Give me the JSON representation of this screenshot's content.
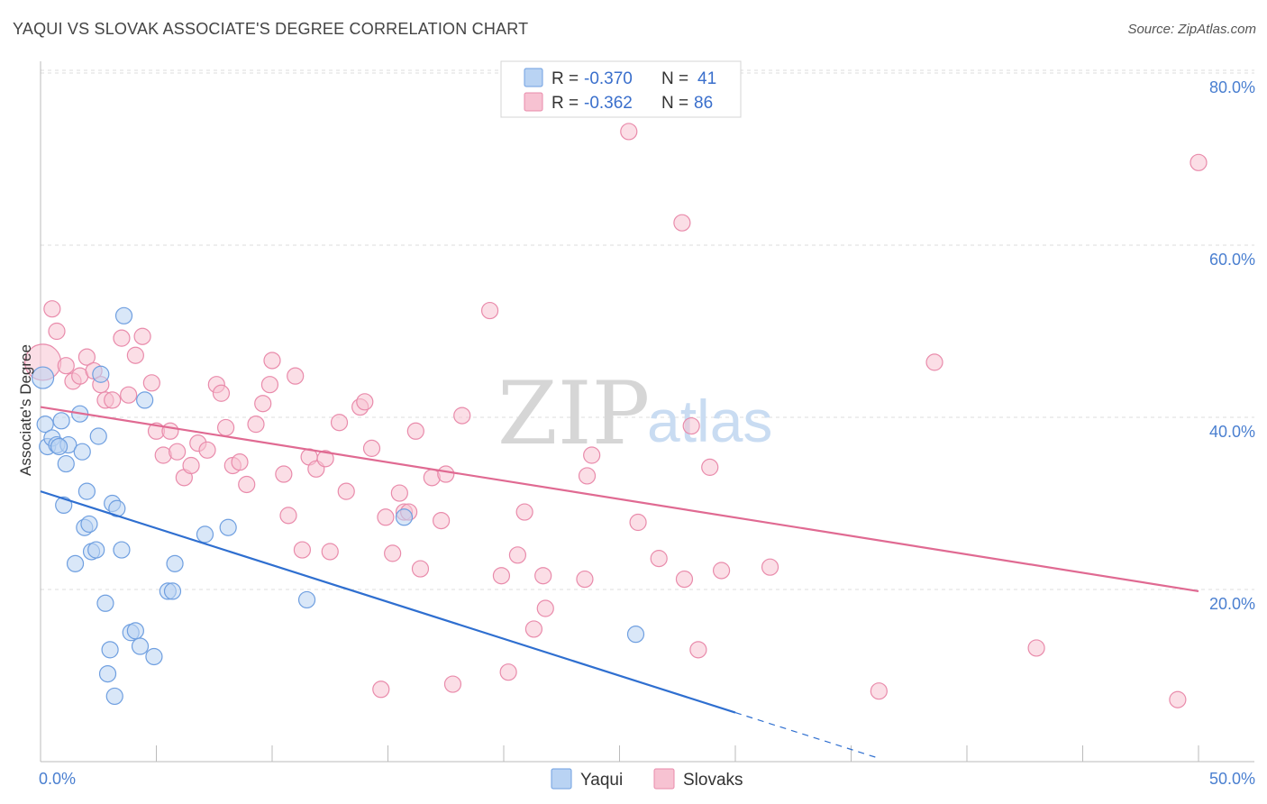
{
  "header": {
    "title": "YAQUI VS SLOVAK ASSOCIATE'S DEGREE CORRELATION CHART",
    "source": "Source: ZipAtlas.com"
  },
  "watermark": {
    "zip": "ZIP",
    "atlas": "atlas"
  },
  "legend": {
    "yaqui": {
      "r_label": "R =",
      "r_value": "-0.370",
      "n_label": "N =",
      "n_value": "41"
    },
    "slovaks": {
      "r_label": "R =",
      "r_value": "-0.362",
      "n_label": "N =",
      "n_value": "86"
    }
  },
  "bottom_legend": {
    "yaqui": "Yaqui",
    "slovaks": "Slovaks"
  },
  "colors": {
    "yaqui_fill": "#b9d3f3",
    "yaqui_stroke": "#6f9fe0",
    "yaqui_line": "#2f6fd0",
    "slovaks_fill": "#f7c2d2",
    "slovaks_stroke": "#e98bab",
    "slovaks_line": "#e06a92"
  },
  "chart_data": {
    "type": "scatter",
    "title": "YAQUI VS SLOVAK ASSOCIATE'S DEGREE CORRELATION CHART",
    "xlabel": "",
    "ylabel": "Associate's Degree",
    "xlim": [
      0,
      50
    ],
    "ylim": [
      0,
      82
    ],
    "x_tick_labels": [
      {
        "value": 0,
        "label": "0.0%"
      },
      {
        "value": 50,
        "label": "50.0%"
      }
    ],
    "y_tick_labels": [
      {
        "value": 20,
        "label": "20.0%"
      },
      {
        "value": 40,
        "label": "40.0%"
      },
      {
        "value": 60,
        "label": "60.0%"
      },
      {
        "value": 80,
        "label": "80.0%"
      }
    ],
    "series": [
      {
        "name": "Yaqui",
        "r": -0.37,
        "n": 41,
        "trend": {
          "x0": 0,
          "y0": 31.4,
          "x1": 30,
          "y1": 5.7,
          "dashed_to_x": 36.2
        },
        "points": [
          [
            0.1,
            44.6
          ],
          [
            0.2,
            39.2
          ],
          [
            0.3,
            36.6
          ],
          [
            0.5,
            37.6
          ],
          [
            0.7,
            36.8
          ],
          [
            0.9,
            39.6
          ],
          [
            1.0,
            29.8
          ],
          [
            1.1,
            34.6
          ],
          [
            1.2,
            36.8
          ],
          [
            1.5,
            23.0
          ],
          [
            1.7,
            40.4
          ],
          [
            1.8,
            36.0
          ],
          [
            1.9,
            27.2
          ],
          [
            2.0,
            31.4
          ],
          [
            2.1,
            27.6
          ],
          [
            2.2,
            24.4
          ],
          [
            2.4,
            24.6
          ],
          [
            2.5,
            37.8
          ],
          [
            2.6,
            45.0
          ],
          [
            2.8,
            18.4
          ],
          [
            2.9,
            10.2
          ],
          [
            3.0,
            13.0
          ],
          [
            3.1,
            30.0
          ],
          [
            3.2,
            7.6
          ],
          [
            3.3,
            29.4
          ],
          [
            3.5,
            24.6
          ],
          [
            3.6,
            51.8
          ],
          [
            3.9,
            15.0
          ],
          [
            4.1,
            15.2
          ],
          [
            4.3,
            13.4
          ],
          [
            4.5,
            42.0
          ],
          [
            4.9,
            12.2
          ],
          [
            5.5,
            19.8
          ],
          [
            5.7,
            19.8
          ],
          [
            5.8,
            23.0
          ],
          [
            7.1,
            26.4
          ],
          [
            8.1,
            27.2
          ],
          [
            11.5,
            18.8
          ],
          [
            15.7,
            28.4
          ],
          [
            25.7,
            14.8
          ],
          [
            0.8,
            36.6
          ]
        ]
      },
      {
        "name": "Slovaks",
        "r": -0.362,
        "n": 86,
        "trend": {
          "x0": 0,
          "y0": 41.2,
          "x1": 50,
          "y1": 19.8
        },
        "points": [
          [
            0.1,
            46.4
          ],
          [
            0.5,
            52.6
          ],
          [
            0.7,
            50.0
          ],
          [
            1.1,
            46.0
          ],
          [
            1.4,
            44.2
          ],
          [
            1.7,
            44.8
          ],
          [
            2.0,
            47.0
          ],
          [
            2.3,
            45.4
          ],
          [
            2.6,
            43.8
          ],
          [
            2.8,
            42.0
          ],
          [
            3.1,
            42.0
          ],
          [
            3.5,
            49.2
          ],
          [
            3.8,
            42.6
          ],
          [
            4.1,
            47.2
          ],
          [
            4.4,
            49.4
          ],
          [
            4.8,
            44.0
          ],
          [
            5.0,
            38.4
          ],
          [
            5.3,
            35.6
          ],
          [
            5.6,
            38.4
          ],
          [
            5.9,
            36.0
          ],
          [
            6.2,
            33.0
          ],
          [
            6.5,
            34.4
          ],
          [
            6.8,
            37.0
          ],
          [
            7.2,
            36.2
          ],
          [
            7.6,
            43.8
          ],
          [
            7.8,
            42.8
          ],
          [
            8.0,
            38.8
          ],
          [
            8.3,
            34.4
          ],
          [
            8.6,
            34.8
          ],
          [
            8.9,
            32.2
          ],
          [
            9.3,
            39.2
          ],
          [
            9.6,
            41.6
          ],
          [
            9.9,
            43.8
          ],
          [
            10.0,
            46.6
          ],
          [
            10.5,
            33.4
          ],
          [
            10.7,
            28.6
          ],
          [
            11.0,
            44.8
          ],
          [
            11.3,
            24.6
          ],
          [
            11.6,
            35.4
          ],
          [
            11.9,
            34.0
          ],
          [
            12.3,
            35.2
          ],
          [
            12.5,
            24.4
          ],
          [
            12.9,
            39.4
          ],
          [
            13.2,
            31.4
          ],
          [
            13.8,
            41.2
          ],
          [
            14.0,
            41.8
          ],
          [
            14.3,
            36.4
          ],
          [
            14.7,
            8.4
          ],
          [
            14.9,
            28.4
          ],
          [
            15.2,
            24.2
          ],
          [
            15.5,
            31.2
          ],
          [
            15.7,
            29.0
          ],
          [
            15.9,
            29.0
          ],
          [
            16.2,
            38.4
          ],
          [
            16.4,
            22.4
          ],
          [
            16.9,
            33.0
          ],
          [
            17.3,
            28.0
          ],
          [
            17.5,
            33.4
          ],
          [
            17.8,
            9.0
          ],
          [
            18.2,
            40.2
          ],
          [
            19.4,
            52.4
          ],
          [
            19.9,
            21.6
          ],
          [
            20.2,
            10.4
          ],
          [
            20.6,
            24.0
          ],
          [
            20.9,
            29.0
          ],
          [
            21.3,
            15.4
          ],
          [
            21.7,
            21.6
          ],
          [
            21.8,
            17.8
          ],
          [
            23.5,
            21.2
          ],
          [
            23.6,
            33.2
          ],
          [
            23.8,
            35.6
          ],
          [
            25.4,
            73.2
          ],
          [
            25.8,
            27.8
          ],
          [
            26.7,
            23.6
          ],
          [
            27.7,
            62.6
          ],
          [
            27.8,
            21.2
          ],
          [
            28.1,
            39.0
          ],
          [
            28.4,
            13.0
          ],
          [
            28.9,
            34.2
          ],
          [
            29.4,
            22.2
          ],
          [
            31.5,
            22.6
          ],
          [
            36.2,
            8.2
          ],
          [
            38.6,
            46.4
          ],
          [
            43.0,
            13.2
          ],
          [
            49.1,
            7.2
          ],
          [
            50.0,
            69.6
          ]
        ]
      }
    ]
  }
}
